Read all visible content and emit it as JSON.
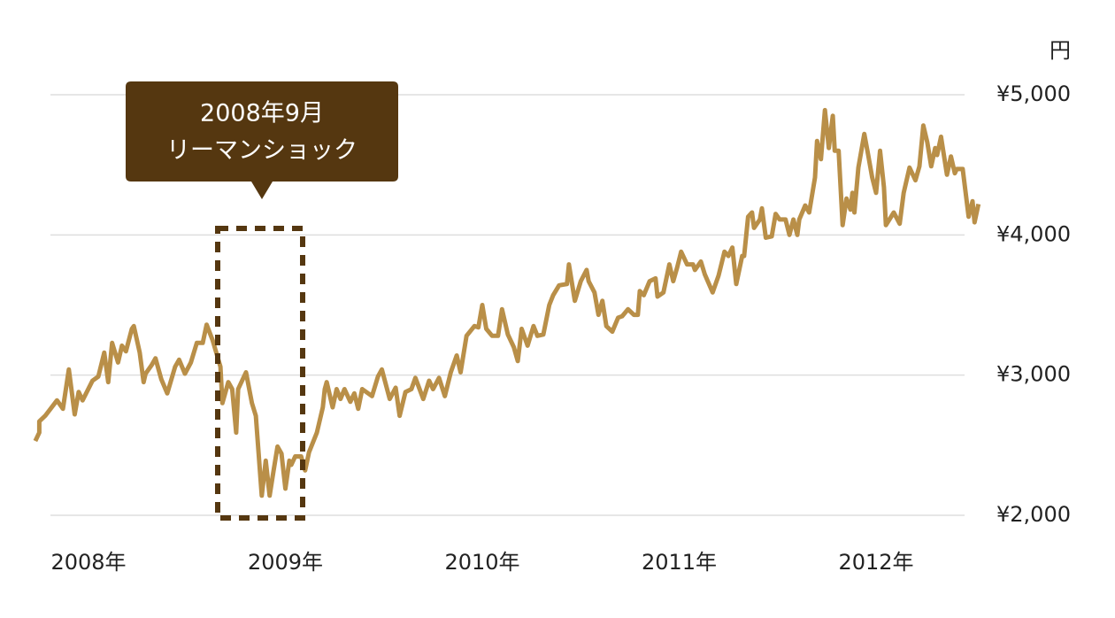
{
  "chart_data": {
    "type": "line",
    "y_label": "円",
    "annotation": {
      "lines": [
        "2008年9月",
        "リーマンショック"
      ]
    },
    "xlim": [
      2007.7,
      2012.55
    ],
    "xticks": [
      {
        "value": 2008,
        "label": "2008年"
      },
      {
        "value": 2009,
        "label": "2009年"
      },
      {
        "value": 2010,
        "label": "2010年"
      },
      {
        "value": 2011,
        "label": "2011年"
      },
      {
        "value": 2012,
        "label": "2012年"
      }
    ],
    "ylim": [
      2000,
      5000
    ],
    "yticks": [
      {
        "value": 2000,
        "label": "¥2,000"
      },
      {
        "value": 3000,
        "label": "¥3,000"
      },
      {
        "value": 4000,
        "label": "¥4,000"
      },
      {
        "value": 5000,
        "label": "¥5,000"
      }
    ],
    "grid": true,
    "x": [
      2007.73,
      2007.75,
      2007.75,
      2007.78,
      2007.84,
      2007.87,
      2007.9,
      2007.93,
      2007.95,
      2007.97,
      2008.02,
      2008.05,
      2008.08,
      2008.1,
      2008.12,
      2008.15,
      2008.17,
      2008.19,
      2008.22,
      2008.23,
      2008.26,
      2008.28,
      2008.29,
      2008.32,
      2008.34,
      2008.37,
      2008.4,
      2008.44,
      2008.46,
      2008.49,
      2008.52,
      2008.55,
      2008.58,
      2008.6,
      2008.63,
      2008.67,
      2008.68,
      2008.71,
      2008.73,
      2008.75,
      2008.76,
      2008.8,
      2008.83,
      2008.85,
      2008.88,
      2008.9,
      2008.92,
      2008.94,
      2008.96,
      2008.98,
      2009.0,
      2009.02,
      2009.03,
      2009.05,
      2009.08,
      2009.1,
      2009.12,
      2009.16,
      2009.19,
      2009.2,
      2009.21,
      2009.24,
      2009.26,
      2009.28,
      2009.3,
      2009.33,
      2009.35,
      2009.37,
      2009.39,
      2009.44,
      2009.47,
      2009.49,
      2009.53,
      2009.56,
      2009.58,
      2009.61,
      2009.64,
      2009.66,
      2009.7,
      2009.73,
      2009.75,
      2009.78,
      2009.81,
      2009.84,
      2009.87,
      2009.89,
      2009.92,
      2009.96,
      2009.98,
      2010.0,
      2010.02,
      2010.05,
      2010.08,
      2010.1,
      2010.13,
      2010.16,
      2010.18,
      2010.2,
      2010.23,
      2010.26,
      2010.28,
      2010.31,
      2010.34,
      2010.36,
      2010.39,
      2010.43,
      2010.44,
      2010.47,
      2010.5,
      2010.53,
      2010.54,
      2010.57,
      2010.59,
      2010.61,
      2010.63,
      2010.66,
      2010.69,
      2010.71,
      2010.74,
      2010.77,
      2010.79,
      2010.8,
      2010.82,
      2010.85,
      2010.88,
      2010.89,
      2010.92,
      2010.95,
      2010.97,
      2010.99,
      2011.01,
      2011.04,
      2011.07,
      2011.08,
      2011.11,
      2011.13,
      2011.17,
      2011.2,
      2011.23,
      2011.25,
      2011.27,
      2011.29,
      2011.32,
      2011.33,
      2011.35,
      2011.37,
      2011.38,
      2011.41,
      2011.42,
      2011.44,
      2011.47,
      2011.49,
      2011.51,
      2011.54,
      2011.56,
      2011.58,
      2011.6,
      2011.61,
      2011.64,
      2011.66,
      2011.69,
      2011.7,
      2011.72,
      2011.74,
      2011.76,
      2011.78,
      2011.79,
      2011.81,
      2011.83,
      2011.85,
      2011.87,
      2011.88,
      2011.89,
      2011.91,
      2011.94,
      2011.96,
      2011.98,
      2012.0,
      2012.02,
      2012.04,
      2012.05,
      2012.09,
      2012.12,
      2012.14,
      2012.17,
      2012.2,
      2012.22,
      2012.24,
      2012.26,
      2012.28,
      2012.3,
      2012.31,
      2012.33,
      2012.36,
      2012.38,
      2012.4,
      2012.41,
      2012.44,
      2012.47,
      2012.49,
      2012.5,
      2012.52
    ],
    "series": [
      {
        "color": "#b98f48",
        "values": [
          2530,
          2590,
          2670,
          2710,
          2820,
          2760,
          3040,
          2720,
          2880,
          2820,
          2960,
          2990,
          3160,
          2950,
          3230,
          3090,
          3210,
          3170,
          3330,
          3350,
          3160,
          2950,
          3010,
          3070,
          3120,
          2970,
          2870,
          3060,
          3110,
          3010,
          3090,
          3230,
          3230,
          3360,
          3250,
          3060,
          2800,
          2950,
          2900,
          2590,
          2900,
          3020,
          2800,
          2710,
          2140,
          2390,
          2140,
          2320,
          2490,
          2440,
          2190,
          2390,
          2360,
          2420,
          2420,
          2320,
          2450,
          2590,
          2770,
          2900,
          2950,
          2770,
          2900,
          2830,
          2900,
          2810,
          2870,
          2760,
          2900,
          2850,
          2990,
          3040,
          2830,
          2910,
          2710,
          2880,
          2900,
          2980,
          2830,
          2960,
          2900,
          2980,
          2850,
          3020,
          3140,
          3020,
          3280,
          3350,
          3340,
          3500,
          3330,
          3280,
          3280,
          3470,
          3290,
          3200,
          3100,
          3330,
          3210,
          3350,
          3280,
          3290,
          3500,
          3570,
          3640,
          3650,
          3790,
          3530,
          3670,
          3750,
          3670,
          3590,
          3430,
          3530,
          3350,
          3310,
          3410,
          3420,
          3470,
          3430,
          3430,
          3600,
          3570,
          3670,
          3690,
          3560,
          3590,
          3790,
          3670,
          3770,
          3880,
          3790,
          3790,
          3750,
          3810,
          3720,
          3590,
          3710,
          3880,
          3850,
          3910,
          3650,
          3850,
          3850,
          4130,
          4160,
          4050,
          4110,
          4190,
          3980,
          3990,
          4150,
          4110,
          4110,
          4000,
          4110,
          4000,
          4110,
          4210,
          4160,
          4410,
          4670,
          4540,
          4890,
          4620,
          4850,
          4600,
          4600,
          4070,
          4260,
          4180,
          4300,
          4160,
          4480,
          4720,
          4570,
          4410,
          4300,
          4600,
          4340,
          4070,
          4160,
          4080,
          4300,
          4480,
          4390,
          4490,
          4780,
          4660,
          4490,
          4620,
          4570,
          4700,
          4430,
          4560,
          4440,
          4470,
          4470,
          4130,
          4240,
          4090,
          4220
        ]
      }
    ]
  }
}
